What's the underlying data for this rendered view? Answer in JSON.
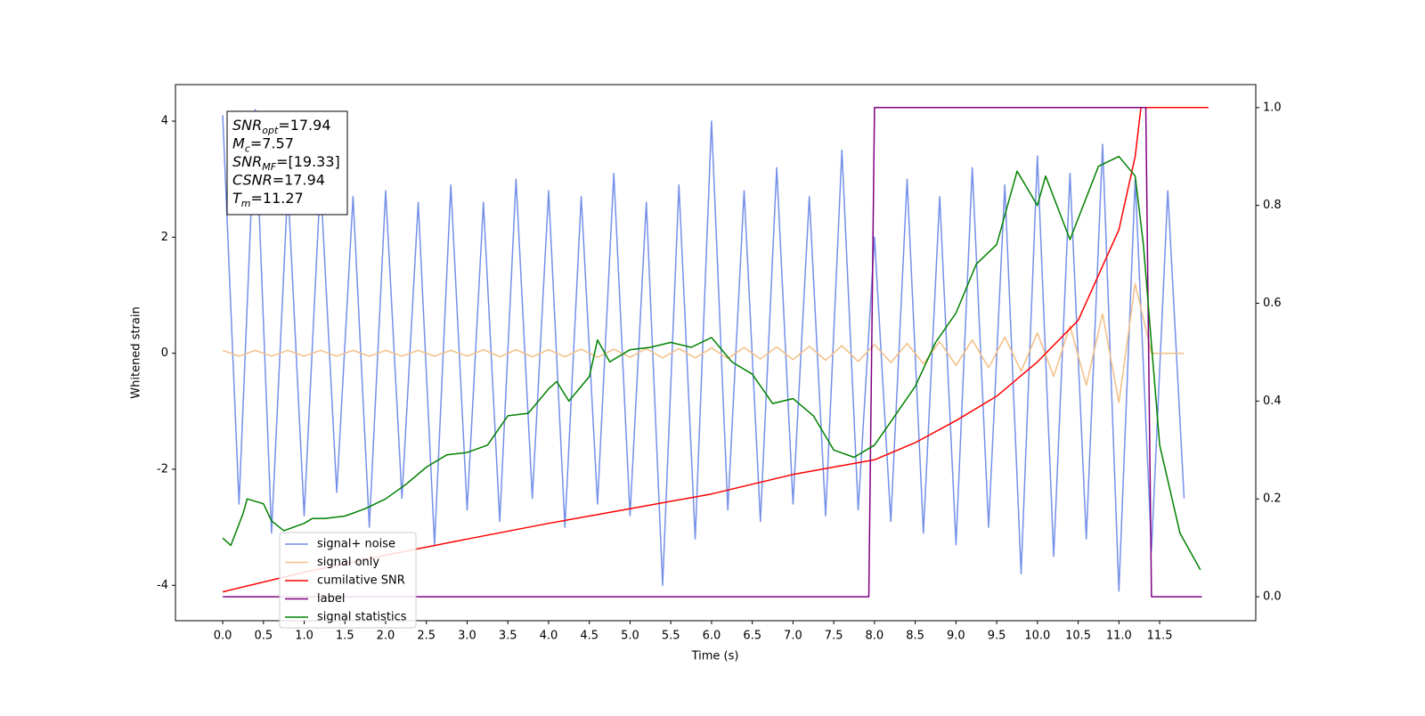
{
  "chart_data": {
    "type": "line",
    "xlabel": "Time (s)",
    "ylabel": "Whitened strain",
    "xlim": [
      -0.58,
      12.68
    ],
    "ylim": [
      -4.61,
      4.63
    ],
    "y2lim": [
      -0.049,
      1.047
    ],
    "xticks": [
      {
        "value": 0,
        "label": "0.0"
      },
      {
        "value": 0.5,
        "label": "0.5"
      },
      {
        "value": 1,
        "label": "1.0"
      },
      {
        "value": 1.5,
        "label": "1.5"
      },
      {
        "value": 2,
        "label": "2.0"
      },
      {
        "value": 2.5,
        "label": "2.5"
      },
      {
        "value": 3,
        "label": "3.0"
      },
      {
        "value": 3.5,
        "label": "3.5"
      },
      {
        "value": 4,
        "label": "4.0"
      },
      {
        "value": 4.5,
        "label": "4.5"
      },
      {
        "value": 5,
        "label": "5.0"
      },
      {
        "value": 5.5,
        "label": "5.5"
      },
      {
        "value": 6,
        "label": "6.0"
      },
      {
        "value": 6.5,
        "label": "6.5"
      },
      {
        "value": 7,
        "label": "7.0"
      },
      {
        "value": 7.5,
        "label": "7.5"
      },
      {
        "value": 8,
        "label": "8.0"
      },
      {
        "value": 8.5,
        "label": "8.5"
      },
      {
        "value": 9,
        "label": "9.0"
      },
      {
        "value": 9.5,
        "label": "9.5"
      },
      {
        "value": 10,
        "label": "10.0"
      },
      {
        "value": 10.5,
        "label": "10.5"
      },
      {
        "value": 11,
        "label": "11.0"
      },
      {
        "value": 11.5,
        "label": "11.5"
      }
    ],
    "yticks": [
      -4,
      -2,
      0,
      2,
      4
    ],
    "y2ticks": [
      {
        "value": 0,
        "label": "0.0"
      },
      {
        "value": 0.2,
        "label": "0.2"
      },
      {
        "value": 0.4,
        "label": "0.4"
      },
      {
        "value": 0.6,
        "label": "0.6"
      },
      {
        "value": 0.8,
        "label": "0.8"
      },
      {
        "value": 1,
        "label": "1.0"
      }
    ],
    "annotations": [
      {
        "label": "SNR",
        "sub": "opt",
        "text": "=17.94"
      },
      {
        "label": "M",
        "sub": "c",
        "text": "=7.57"
      },
      {
        "label": "SNR",
        "sub": "MF",
        "text": "=[19.33]"
      },
      {
        "label": "CSNR",
        "sub": "",
        "text": "=17.94"
      },
      {
        "label": "T",
        "sub": "m",
        "text": "=11.27"
      }
    ],
    "series": [
      {
        "name": "signal+ noise",
        "color": "#7490e8",
        "x": [
          0,
          0.2,
          0.4,
          0.6,
          0.8,
          1,
          1.2,
          1.4,
          1.6,
          1.8,
          2,
          2.2,
          2.4,
          2.6,
          2.8,
          3,
          3.2,
          3.4,
          3.6,
          3.8,
          4,
          4.2,
          4.4,
          4.6,
          4.8,
          5,
          5.2,
          5.4,
          5.6,
          5.8,
          6,
          6.2,
          6.4,
          6.6,
          6.8,
          7,
          7.2,
          7.4,
          7.6,
          7.8,
          8,
          8.2,
          8.4,
          8.6,
          8.8,
          9,
          9.2,
          9.4,
          9.6,
          9.8,
          10,
          10.2,
          10.4,
          10.6,
          10.8,
          11,
          11.2,
          11.4,
          11.6,
          11.8
        ],
        "values": [
          4.1,
          -2.6,
          4.2,
          -3.1,
          2.9,
          -2.8,
          3.0,
          -2.4,
          2.7,
          -3.0,
          2.8,
          -2.5,
          2.6,
          -3.3,
          2.9,
          -2.7,
          2.6,
          -2.9,
          3.0,
          -2.5,
          2.8,
          -3.0,
          2.7,
          -2.6,
          3.1,
          -2.8,
          2.6,
          -4.0,
          2.9,
          -3.2,
          4.0,
          -2.7,
          2.8,
          -2.9,
          3.2,
          -2.6,
          2.7,
          -2.8,
          3.5,
          -2.7,
          2.0,
          -2.9,
          3.0,
          -3.1,
          2.7,
          -3.3,
          3.2,
          -3.0,
          2.9,
          -3.8,
          3.4,
          -3.5,
          3.1,
          -3.2,
          3.6,
          -4.1,
          3.0,
          -3.4,
          2.8,
          -2.5
        ]
      },
      {
        "name": "signal only",
        "color": "#f2bf86",
        "x": [
          0,
          0.2,
          0.4,
          0.6,
          0.8,
          1,
          1.2,
          1.4,
          1.6,
          1.8,
          2,
          2.2,
          2.4,
          2.6,
          2.8,
          3,
          3.2,
          3.4,
          3.6,
          3.8,
          4,
          4.2,
          4.4,
          4.6,
          4.8,
          5,
          5.2,
          5.4,
          5.6,
          5.8,
          6,
          6.2,
          6.4,
          6.6,
          6.8,
          7,
          7.2,
          7.4,
          7.6,
          7.8,
          8,
          8.2,
          8.4,
          8.6,
          8.8,
          9,
          9.2,
          9.4,
          9.6,
          9.8,
          10,
          10.2,
          10.4,
          10.6,
          10.8,
          11,
          11.2,
          11.4,
          11.6,
          11.8
        ],
        "values": [
          0.05,
          -0.05,
          0.05,
          -0.05,
          0.05,
          -0.05,
          0.05,
          -0.05,
          0.05,
          -0.05,
          0.05,
          -0.05,
          0.05,
          -0.05,
          0.05,
          -0.05,
          0.06,
          -0.06,
          0.06,
          -0.06,
          0.06,
          -0.06,
          0.07,
          -0.07,
          0.07,
          -0.07,
          0.08,
          -0.08,
          0.08,
          -0.08,
          0.09,
          -0.09,
          0.1,
          -0.1,
          0.11,
          -0.11,
          0.12,
          -0.12,
          0.13,
          -0.14,
          0.15,
          -0.16,
          0.17,
          -0.18,
          0.2,
          -0.21,
          0.23,
          -0.25,
          0.28,
          -0.31,
          0.35,
          -0.4,
          0.47,
          -0.55,
          0.68,
          -0.85,
          1.2,
          0,
          0,
          0
        ]
      },
      {
        "name": "cumilative SNR",
        "color": "#ff0000",
        "axis": "y2",
        "x": [
          0,
          1,
          2,
          3,
          4,
          5,
          6,
          7,
          7.5,
          8,
          8.5,
          9,
          9.5,
          10,
          10.5,
          11,
          11.2,
          11.27,
          11.3,
          12.1
        ],
        "values": [
          0.01,
          0.05,
          0.085,
          0.118,
          0.15,
          0.18,
          0.21,
          0.25,
          0.265,
          0.28,
          0.315,
          0.36,
          0.41,
          0.48,
          0.565,
          0.75,
          0.9,
          1.0,
          1.0,
          1.0
        ]
      },
      {
        "name": "label",
        "color": "#800080",
        "axis": "y2",
        "x": [
          0,
          7.93,
          8.0,
          11.33,
          11.4,
          12.02
        ],
        "values": [
          0,
          0,
          1,
          1,
          0,
          0
        ]
      },
      {
        "name": "signal statistics",
        "color": "#008000",
        "axis": "y2",
        "x": [
          0,
          0.1,
          0.25,
          0.3,
          0.5,
          0.6,
          0.75,
          1.0,
          1.1,
          1.25,
          1.5,
          1.75,
          2.0,
          2.25,
          2.5,
          2.75,
          3.0,
          3.25,
          3.5,
          3.75,
          4.0,
          4.1,
          4.25,
          4.5,
          4.6,
          4.75,
          5.0,
          5.25,
          5.5,
          5.75,
          6.0,
          6.25,
          6.5,
          6.75,
          7.0,
          7.25,
          7.5,
          7.75,
          8.0,
          8.25,
          8.5,
          8.75,
          9.0,
          9.25,
          9.5,
          9.75,
          10.0,
          10.1,
          10.4,
          10.75,
          11.0,
          11.2,
          11.3,
          11.5,
          11.75,
          12.0
        ],
        "values": [
          0.12,
          0.105,
          0.17,
          0.2,
          0.19,
          0.155,
          0.135,
          0.15,
          0.16,
          0.16,
          0.165,
          0.18,
          0.2,
          0.23,
          0.265,
          0.29,
          0.295,
          0.31,
          0.37,
          0.375,
          0.425,
          0.44,
          0.4,
          0.45,
          0.525,
          0.48,
          0.505,
          0.51,
          0.52,
          0.51,
          0.53,
          0.48,
          0.455,
          0.395,
          0.405,
          0.37,
          0.3,
          0.285,
          0.31,
          0.37,
          0.43,
          0.52,
          0.58,
          0.68,
          0.72,
          0.87,
          0.8,
          0.86,
          0.73,
          0.88,
          0.9,
          0.86,
          0.72,
          0.31,
          0.13,
          0.055
        ]
      }
    ]
  }
}
